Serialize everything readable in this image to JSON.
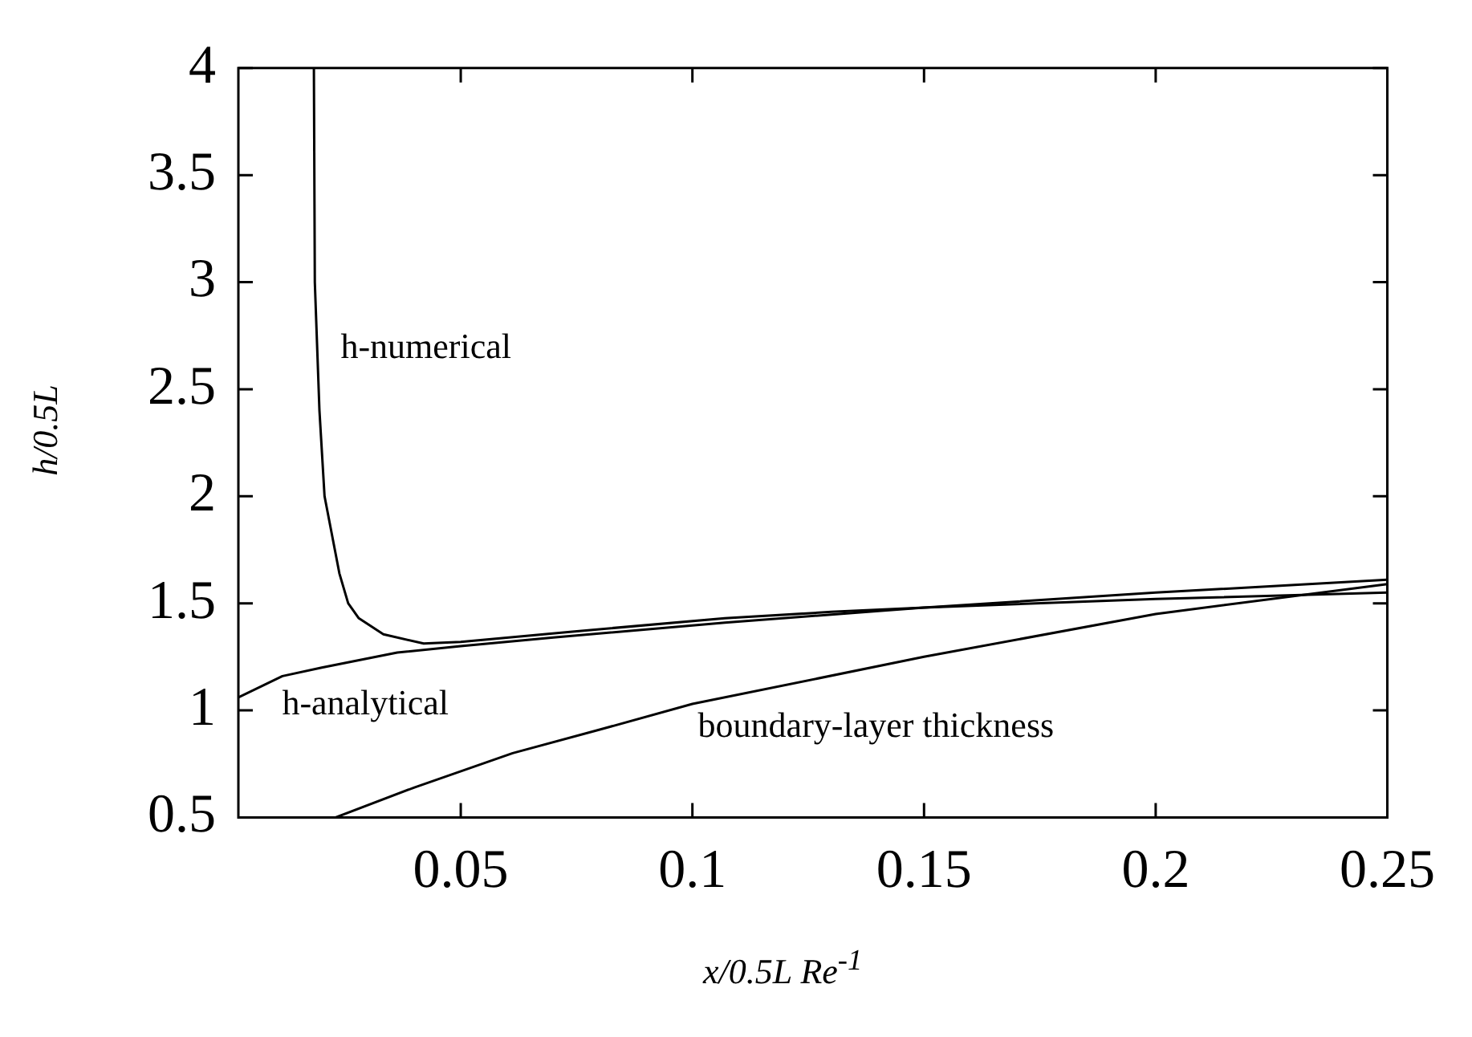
{
  "chart_data": {
    "type": "line",
    "xlabel": "x/0.5L Re$^{-1}$",
    "ylabel": "h/0.5L",
    "xlim": [
      0.002,
      0.25
    ],
    "xticks": [
      0.05,
      0.1,
      0.15,
      0.2,
      0.25
    ],
    "ylim": [
      0.5,
      4
    ],
    "yticks": [
      0.5,
      1,
      1.5,
      2,
      2.5,
      3,
      3.5,
      4
    ],
    "grid": false,
    "legend": false,
    "marker": "none",
    "line_style": "solid",
    "series": [
      {
        "name": "h-numerical",
        "color": "#000000",
        "x": [
          0.0183,
          0.0185,
          0.0195,
          0.0206,
          0.0238,
          0.0257,
          0.028,
          0.0333,
          0.042,
          0.05,
          0.0736,
          0.107,
          0.13,
          0.15,
          0.2,
          0.25
        ],
        "values": [
          4.0,
          3.0,
          2.4,
          2.0,
          1.64,
          1.5,
          1.43,
          1.355,
          1.312,
          1.32,
          1.367,
          1.43,
          1.46,
          1.48,
          1.52,
          1.55
        ]
      },
      {
        "name": "h-analytical",
        "color": "#000000",
        "x": [
          0.002,
          0.0115,
          0.02,
          0.0363,
          0.05,
          0.07,
          0.107,
          0.15,
          0.2,
          0.25
        ],
        "values": [
          1.06,
          1.16,
          1.2,
          1.27,
          1.3,
          1.34,
          1.41,
          1.48,
          1.55,
          1.61
        ]
      },
      {
        "name": "boundary-layer thickness",
        "color": "#000000",
        "x": [
          0.023,
          0.04,
          0.0612,
          0.08,
          0.1,
          0.15,
          0.2,
          0.25
        ],
        "values": [
          0.5,
          0.64,
          0.8,
          0.91,
          1.03,
          1.25,
          1.45,
          1.59
        ]
      }
    ]
  }
}
